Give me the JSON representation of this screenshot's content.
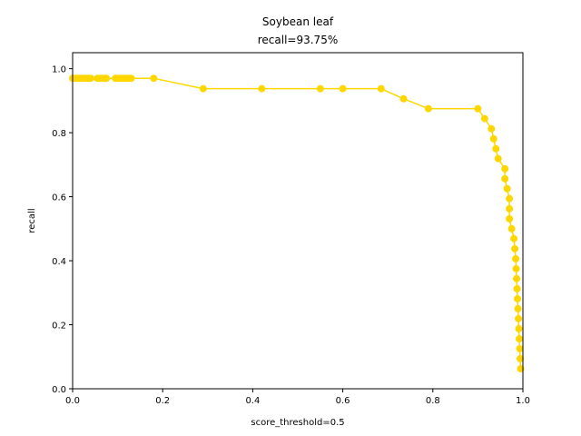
{
  "chart_data": {
    "type": "line",
    "title": "Soybean leaf",
    "subtitle": "recall=93.75%",
    "xlabel": "score_threshold=0.5",
    "ylabel": "recall",
    "xlim": [
      0,
      1
    ],
    "ylim": [
      0,
      1.05
    ],
    "xticks": [
      0.0,
      0.2,
      0.4,
      0.6,
      0.8,
      1.0
    ],
    "xtick_labels": [
      "0.0",
      "0.2",
      "0.4",
      "0.6",
      "0.8",
      "1.0"
    ],
    "yticks": [
      0.0,
      0.2,
      0.4,
      0.6,
      0.8,
      1.0
    ],
    "ytick_labels": [
      "0.0",
      "0.2",
      "0.4",
      "0.6",
      "0.8",
      "1.0"
    ],
    "grid": false,
    "legend": "none",
    "color": "#FFD700",
    "marker": "circle",
    "series": [
      {
        "x": [
          0.0,
          0.005,
          0.01,
          0.015,
          0.02,
          0.025,
          0.03,
          0.035,
          0.04,
          0.055,
          0.06,
          0.065,
          0.07,
          0.075,
          0.095,
          0.1,
          0.105,
          0.11,
          0.115,
          0.12,
          0.125,
          0.13,
          0.18,
          0.29,
          0.42,
          0.55,
          0.6,
          0.685,
          0.735,
          0.79,
          0.9,
          0.915,
          0.93,
          0.935,
          0.94,
          0.945,
          0.96,
          0.96,
          0.965,
          0.97,
          0.97,
          0.97,
          0.975,
          0.98,
          0.982,
          0.984,
          0.985,
          0.986,
          0.987,
          0.988,
          0.989,
          0.99,
          0.991,
          0.992,
          0.993,
          0.994,
          0.995
        ],
        "y": [
          0.97,
          0.97,
          0.97,
          0.97,
          0.97,
          0.97,
          0.97,
          0.97,
          0.97,
          0.97,
          0.97,
          0.97,
          0.97,
          0.97,
          0.97,
          0.97,
          0.97,
          0.97,
          0.97,
          0.97,
          0.97,
          0.97,
          0.97,
          0.9375,
          0.9375,
          0.9375,
          0.9375,
          0.9375,
          0.906,
          0.875,
          0.875,
          0.844,
          0.8125,
          0.781,
          0.75,
          0.719,
          0.6875,
          0.656,
          0.625,
          0.594,
          0.5625,
          0.531,
          0.5,
          0.469,
          0.4375,
          0.406,
          0.375,
          0.344,
          0.3125,
          0.281,
          0.25,
          0.219,
          0.1875,
          0.156,
          0.125,
          0.094,
          0.0625
        ]
      }
    ]
  }
}
